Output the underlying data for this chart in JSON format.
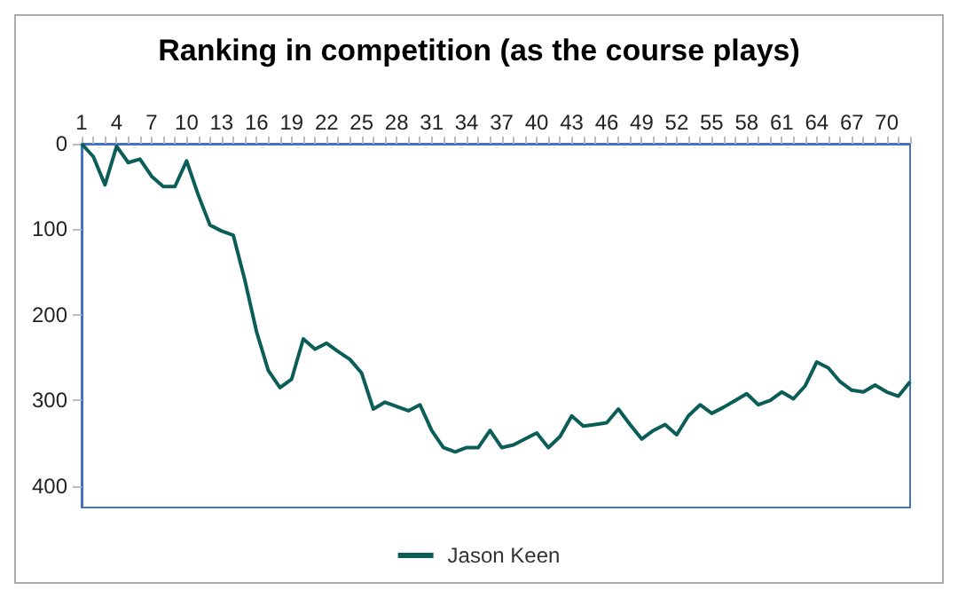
{
  "chart_data": {
    "type": "line",
    "title": "Ranking in competition (as the course plays)",
    "categories": [
      "1",
      null,
      null,
      "4",
      null,
      null,
      "7",
      null,
      null,
      "10",
      null,
      null,
      "13",
      null,
      null,
      "16",
      null,
      null,
      "19",
      null,
      null,
      "22",
      null,
      null,
      "25",
      null,
      null,
      "28",
      null,
      null,
      "31",
      null,
      null,
      "34",
      null,
      null,
      "37",
      null,
      null,
      "40",
      null,
      null,
      "43",
      null,
      null,
      "46",
      null,
      null,
      "49",
      null,
      null,
      "52",
      null,
      null,
      "55",
      null,
      null,
      "58",
      null,
      null,
      "61",
      null,
      null,
      "64",
      null,
      null,
      "67",
      null,
      null,
      "70",
      null,
      null
    ],
    "series": [
      {
        "name": "Jason Keen",
        "color": "#0b5e57",
        "values": [
          0,
          15,
          48,
          3,
          22,
          18,
          38,
          50,
          50,
          20,
          60,
          95,
          102,
          107,
          160,
          220,
          265,
          285,
          275,
          228,
          240,
          233,
          243,
          252,
          268,
          310,
          302,
          307,
          312,
          305,
          335,
          355,
          360,
          355,
          355,
          335,
          355,
          352,
          345,
          338,
          355,
          342,
          318,
          330,
          328,
          326,
          310,
          328,
          345,
          335,
          328,
          340,
          318,
          305,
          315,
          308,
          300,
          292,
          305,
          300,
          290,
          298,
          283,
          255,
          262,
          278,
          288,
          290,
          282,
          290,
          295,
          278
        ]
      }
    ],
    "ylim": [
      425,
      0
    ],
    "yticks": [
      0,
      100,
      200,
      300,
      400
    ],
    "grid": false,
    "legend": "bottom",
    "marker": "none",
    "line_style": "solid"
  }
}
